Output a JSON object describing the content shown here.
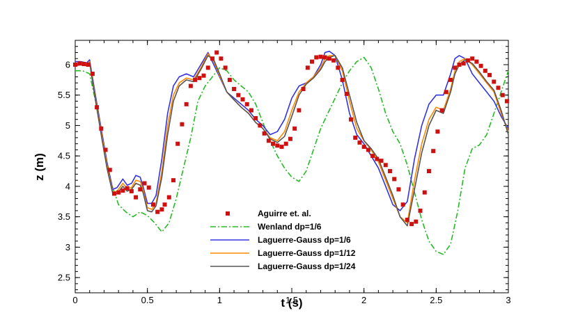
{
  "chart_data": {
    "type": "line",
    "title": "",
    "xlabel": "t (s)",
    "ylabel": "z (m)",
    "xlim": [
      0,
      3
    ],
    "ylim": [
      2.25,
      6.4
    ],
    "xticks": [
      0,
      0.5,
      1,
      1.5,
      2,
      2.5,
      3
    ],
    "xtick_labels": [
      "0",
      "0.5",
      "1",
      "1.5",
      "2",
      "2.5",
      "3"
    ],
    "yticks": [
      2.5,
      3,
      3.5,
      4,
      4.5,
      5,
      5.5,
      6
    ],
    "ytick_labels": [
      "2.5",
      "3",
      "3.5",
      "4",
      "4.5",
      "5",
      "5.5",
      "6"
    ],
    "grid": false,
    "legend_position": "bottom-center",
    "series": [
      {
        "name": "Aguirre et. al.",
        "kind": "markers",
        "color": "#cc1111",
        "x": [
          0.0,
          0.03,
          0.06,
          0.09,
          0.12,
          0.15,
          0.18,
          0.21,
          0.24,
          0.27,
          0.3,
          0.33,
          0.36,
          0.39,
          0.42,
          0.45,
          0.48,
          0.51,
          0.54,
          0.57,
          0.6,
          0.62,
          0.65,
          0.68,
          0.71,
          0.74,
          0.77,
          0.8,
          0.83,
          0.86,
          0.89,
          0.92,
          0.95,
          0.98,
          1.01,
          1.04,
          1.07,
          1.1,
          1.13,
          1.16,
          1.19,
          1.22,
          1.25,
          1.28,
          1.31,
          1.34,
          1.37,
          1.4,
          1.43,
          1.46,
          1.49,
          1.52,
          1.55,
          1.58,
          1.61,
          1.64,
          1.67,
          1.7,
          1.73,
          1.76,
          1.79,
          1.82,
          1.85,
          1.88,
          1.91,
          1.94,
          1.97,
          2.0,
          2.03,
          2.06,
          2.09,
          2.12,
          2.15,
          2.18,
          2.21,
          2.24,
          2.27,
          2.3,
          2.33,
          2.36,
          2.39,
          2.42,
          2.45,
          2.48,
          2.51,
          2.54,
          2.57,
          2.6,
          2.63,
          2.66,
          2.69,
          2.72,
          2.75,
          2.78,
          2.81,
          2.84,
          2.87,
          2.9,
          2.93,
          2.96,
          2.99
        ],
        "y": [
          6.0,
          6.02,
          6.01,
          6.0,
          5.85,
          5.3,
          4.95,
          4.6,
          4.27,
          3.88,
          3.9,
          3.93,
          3.97,
          3.92,
          3.82,
          3.95,
          4.05,
          3.98,
          3.7,
          3.58,
          3.62,
          3.7,
          3.82,
          4.1,
          4.7,
          5.02,
          5.35,
          5.65,
          5.75,
          5.78,
          5.82,
          5.95,
          6.1,
          6.2,
          6.1,
          5.95,
          5.75,
          5.6,
          5.5,
          5.43,
          5.35,
          5.25,
          5.12,
          5.0,
          4.87,
          4.75,
          4.7,
          4.67,
          4.65,
          4.7,
          4.78,
          4.95,
          5.25,
          5.6,
          5.95,
          6.05,
          6.12,
          6.13,
          6.12,
          6.1,
          6.07,
          5.95,
          5.75,
          5.52,
          5.1,
          4.8,
          4.72,
          4.65,
          4.6,
          4.5,
          4.45,
          4.42,
          4.35,
          4.25,
          4.12,
          3.95,
          3.7,
          3.45,
          3.38,
          3.42,
          3.6,
          3.9,
          4.25,
          4.58,
          4.9,
          5.25,
          5.55,
          5.75,
          5.95,
          6.0,
          6.02,
          6.07,
          6.1,
          6.05,
          5.98,
          5.9,
          5.83,
          5.72,
          5.62,
          5.5,
          5.4
        ]
      },
      {
        "name": "Wenland dp=1/6",
        "kind": "line",
        "dash": "dashdot",
        "color": "#22bb22",
        "x": [
          0.0,
          0.05,
          0.1,
          0.15,
          0.2,
          0.25,
          0.3,
          0.35,
          0.4,
          0.45,
          0.5,
          0.55,
          0.6,
          0.65,
          0.7,
          0.75,
          0.8,
          0.85,
          0.9,
          0.95,
          1.0,
          1.05,
          1.1,
          1.15,
          1.2,
          1.25,
          1.3,
          1.35,
          1.4,
          1.45,
          1.5,
          1.55,
          1.6,
          1.65,
          1.7,
          1.75,
          1.8,
          1.85,
          1.9,
          1.95,
          2.0,
          2.05,
          2.1,
          2.15,
          2.2,
          2.25,
          2.3,
          2.35,
          2.4,
          2.45,
          2.5,
          2.55,
          2.6,
          2.65,
          2.7,
          2.75,
          2.8,
          2.85,
          2.9,
          2.95,
          3.0
        ],
        "y": [
          5.9,
          5.9,
          5.85,
          5.3,
          4.6,
          4.05,
          3.7,
          3.58,
          3.5,
          3.58,
          3.52,
          3.4,
          3.25,
          3.4,
          3.8,
          4.3,
          4.8,
          5.4,
          5.65,
          5.8,
          5.95,
          5.9,
          5.75,
          5.65,
          5.55,
          5.35,
          5.05,
          4.75,
          4.5,
          4.3,
          4.15,
          4.08,
          4.25,
          4.6,
          4.95,
          5.2,
          5.45,
          5.7,
          5.9,
          6.05,
          6.12,
          5.95,
          5.6,
          5.2,
          4.9,
          4.7,
          4.35,
          3.9,
          3.45,
          3.1,
          2.93,
          2.88,
          3.05,
          3.6,
          4.3,
          4.62,
          4.68,
          4.85,
          5.2,
          5.55,
          5.9
        ]
      },
      {
        "name": "Laguerre-Gauss dp=1/6",
        "kind": "line",
        "color": "#3333dd",
        "x": [
          0.0,
          0.04,
          0.08,
          0.1,
          0.14,
          0.18,
          0.22,
          0.26,
          0.29,
          0.33,
          0.36,
          0.39,
          0.42,
          0.45,
          0.47,
          0.5,
          0.53,
          0.56,
          0.6,
          0.64,
          0.68,
          0.72,
          0.77,
          0.82,
          0.87,
          0.92,
          0.96,
          1.0,
          1.05,
          1.1,
          1.15,
          1.2,
          1.25,
          1.3,
          1.35,
          1.4,
          1.45,
          1.5,
          1.55,
          1.6,
          1.65,
          1.7,
          1.73,
          1.76,
          1.8,
          1.85,
          1.9,
          1.95,
          2.0,
          2.05,
          2.1,
          2.15,
          2.2,
          2.25,
          2.3,
          2.35,
          2.4,
          2.45,
          2.5,
          2.55,
          2.6,
          2.63,
          2.66,
          2.7,
          2.75,
          2.8,
          2.85,
          2.9,
          2.95,
          3.0
        ],
        "y": [
          6.05,
          6.05,
          6.03,
          6.08,
          5.5,
          4.95,
          4.4,
          3.95,
          3.98,
          4.12,
          4.02,
          4.05,
          4.18,
          4.15,
          4.0,
          3.72,
          3.72,
          3.85,
          4.45,
          5.2,
          5.65,
          5.8,
          5.85,
          5.8,
          6.0,
          6.2,
          6.0,
          5.8,
          5.55,
          5.45,
          5.35,
          5.25,
          5.1,
          5.0,
          4.85,
          4.9,
          5.1,
          5.45,
          5.65,
          5.7,
          5.8,
          6.0,
          6.2,
          6.22,
          6.15,
          5.75,
          5.2,
          4.85,
          4.7,
          4.5,
          4.3,
          4.0,
          3.7,
          3.6,
          3.75,
          4.45,
          5.0,
          5.35,
          5.5,
          5.5,
          5.85,
          6.1,
          6.15,
          6.1,
          5.85,
          5.7,
          5.55,
          5.4,
          5.15,
          4.95
        ]
      },
      {
        "name": "Laguerre-Gauss dp=1/12",
        "kind": "line",
        "color": "#ff8800",
        "x": [
          0.0,
          0.04,
          0.08,
          0.1,
          0.14,
          0.18,
          0.22,
          0.26,
          0.29,
          0.33,
          0.36,
          0.39,
          0.42,
          0.45,
          0.47,
          0.5,
          0.53,
          0.56,
          0.6,
          0.64,
          0.68,
          0.72,
          0.77,
          0.82,
          0.87,
          0.92,
          0.96,
          1.0,
          1.05,
          1.1,
          1.15,
          1.2,
          1.25,
          1.3,
          1.35,
          1.4,
          1.45,
          1.5,
          1.55,
          1.6,
          1.65,
          1.7,
          1.73,
          1.76,
          1.8,
          1.85,
          1.9,
          1.95,
          2.0,
          2.05,
          2.1,
          2.15,
          2.2,
          2.25,
          2.3,
          2.35,
          2.4,
          2.45,
          2.5,
          2.55,
          2.6,
          2.63,
          2.66,
          2.7,
          2.75,
          2.8,
          2.85,
          2.9,
          2.95,
          3.0
        ],
        "y": [
          6.0,
          6.02,
          6.0,
          6.05,
          5.45,
          4.9,
          4.35,
          3.9,
          3.92,
          4.05,
          3.96,
          3.98,
          4.1,
          4.08,
          3.95,
          3.65,
          3.62,
          3.72,
          4.25,
          5.0,
          5.5,
          5.7,
          5.78,
          5.75,
          5.95,
          6.18,
          6.05,
          5.82,
          5.55,
          5.42,
          5.3,
          5.2,
          5.05,
          4.95,
          4.8,
          4.75,
          4.9,
          5.25,
          5.55,
          5.7,
          5.8,
          5.95,
          6.1,
          6.15,
          6.15,
          5.9,
          5.4,
          4.95,
          4.75,
          4.6,
          4.4,
          4.1,
          3.8,
          3.5,
          3.4,
          4.1,
          4.7,
          5.1,
          5.3,
          5.25,
          5.6,
          5.9,
          6.05,
          6.1,
          6.0,
          5.85,
          5.7,
          5.55,
          5.2,
          4.9
        ]
      },
      {
        "name": "Laguerre-Gauss dp=1/24",
        "kind": "line",
        "color": "#555555",
        "x": [
          0.0,
          0.04,
          0.08,
          0.1,
          0.14,
          0.18,
          0.22,
          0.26,
          0.29,
          0.33,
          0.36,
          0.39,
          0.42,
          0.45,
          0.47,
          0.5,
          0.53,
          0.56,
          0.6,
          0.64,
          0.68,
          0.72,
          0.77,
          0.82,
          0.87,
          0.92,
          0.96,
          1.0,
          1.05,
          1.1,
          1.15,
          1.2,
          1.25,
          1.3,
          1.35,
          1.4,
          1.45,
          1.5,
          1.55,
          1.6,
          1.65,
          1.7,
          1.73,
          1.76,
          1.8,
          1.85,
          1.9,
          1.95,
          2.0,
          2.05,
          2.1,
          2.15,
          2.2,
          2.25,
          2.3,
          2.35,
          2.4,
          2.45,
          2.5,
          2.55,
          2.6,
          2.63,
          2.66,
          2.7,
          2.75,
          2.8,
          2.85,
          2.9,
          2.95,
          3.0
        ],
        "y": [
          5.98,
          6.0,
          5.98,
          6.03,
          5.42,
          4.85,
          4.3,
          3.88,
          3.88,
          4.0,
          3.92,
          3.95,
          4.05,
          4.02,
          3.9,
          3.6,
          3.58,
          3.68,
          4.15,
          4.85,
          5.4,
          5.65,
          5.75,
          5.72,
          5.92,
          6.15,
          6.08,
          5.85,
          5.55,
          5.42,
          5.3,
          5.2,
          5.05,
          4.95,
          4.78,
          4.72,
          4.82,
          5.15,
          5.5,
          5.68,
          5.78,
          5.92,
          6.05,
          6.12,
          6.15,
          5.95,
          5.5,
          5.05,
          4.75,
          4.62,
          4.45,
          4.15,
          3.85,
          3.5,
          3.35,
          3.95,
          4.55,
          5.0,
          5.25,
          5.2,
          5.55,
          5.85,
          6.0,
          6.08,
          6.02,
          5.88,
          5.72,
          5.58,
          5.25,
          4.85
        ]
      }
    ]
  }
}
